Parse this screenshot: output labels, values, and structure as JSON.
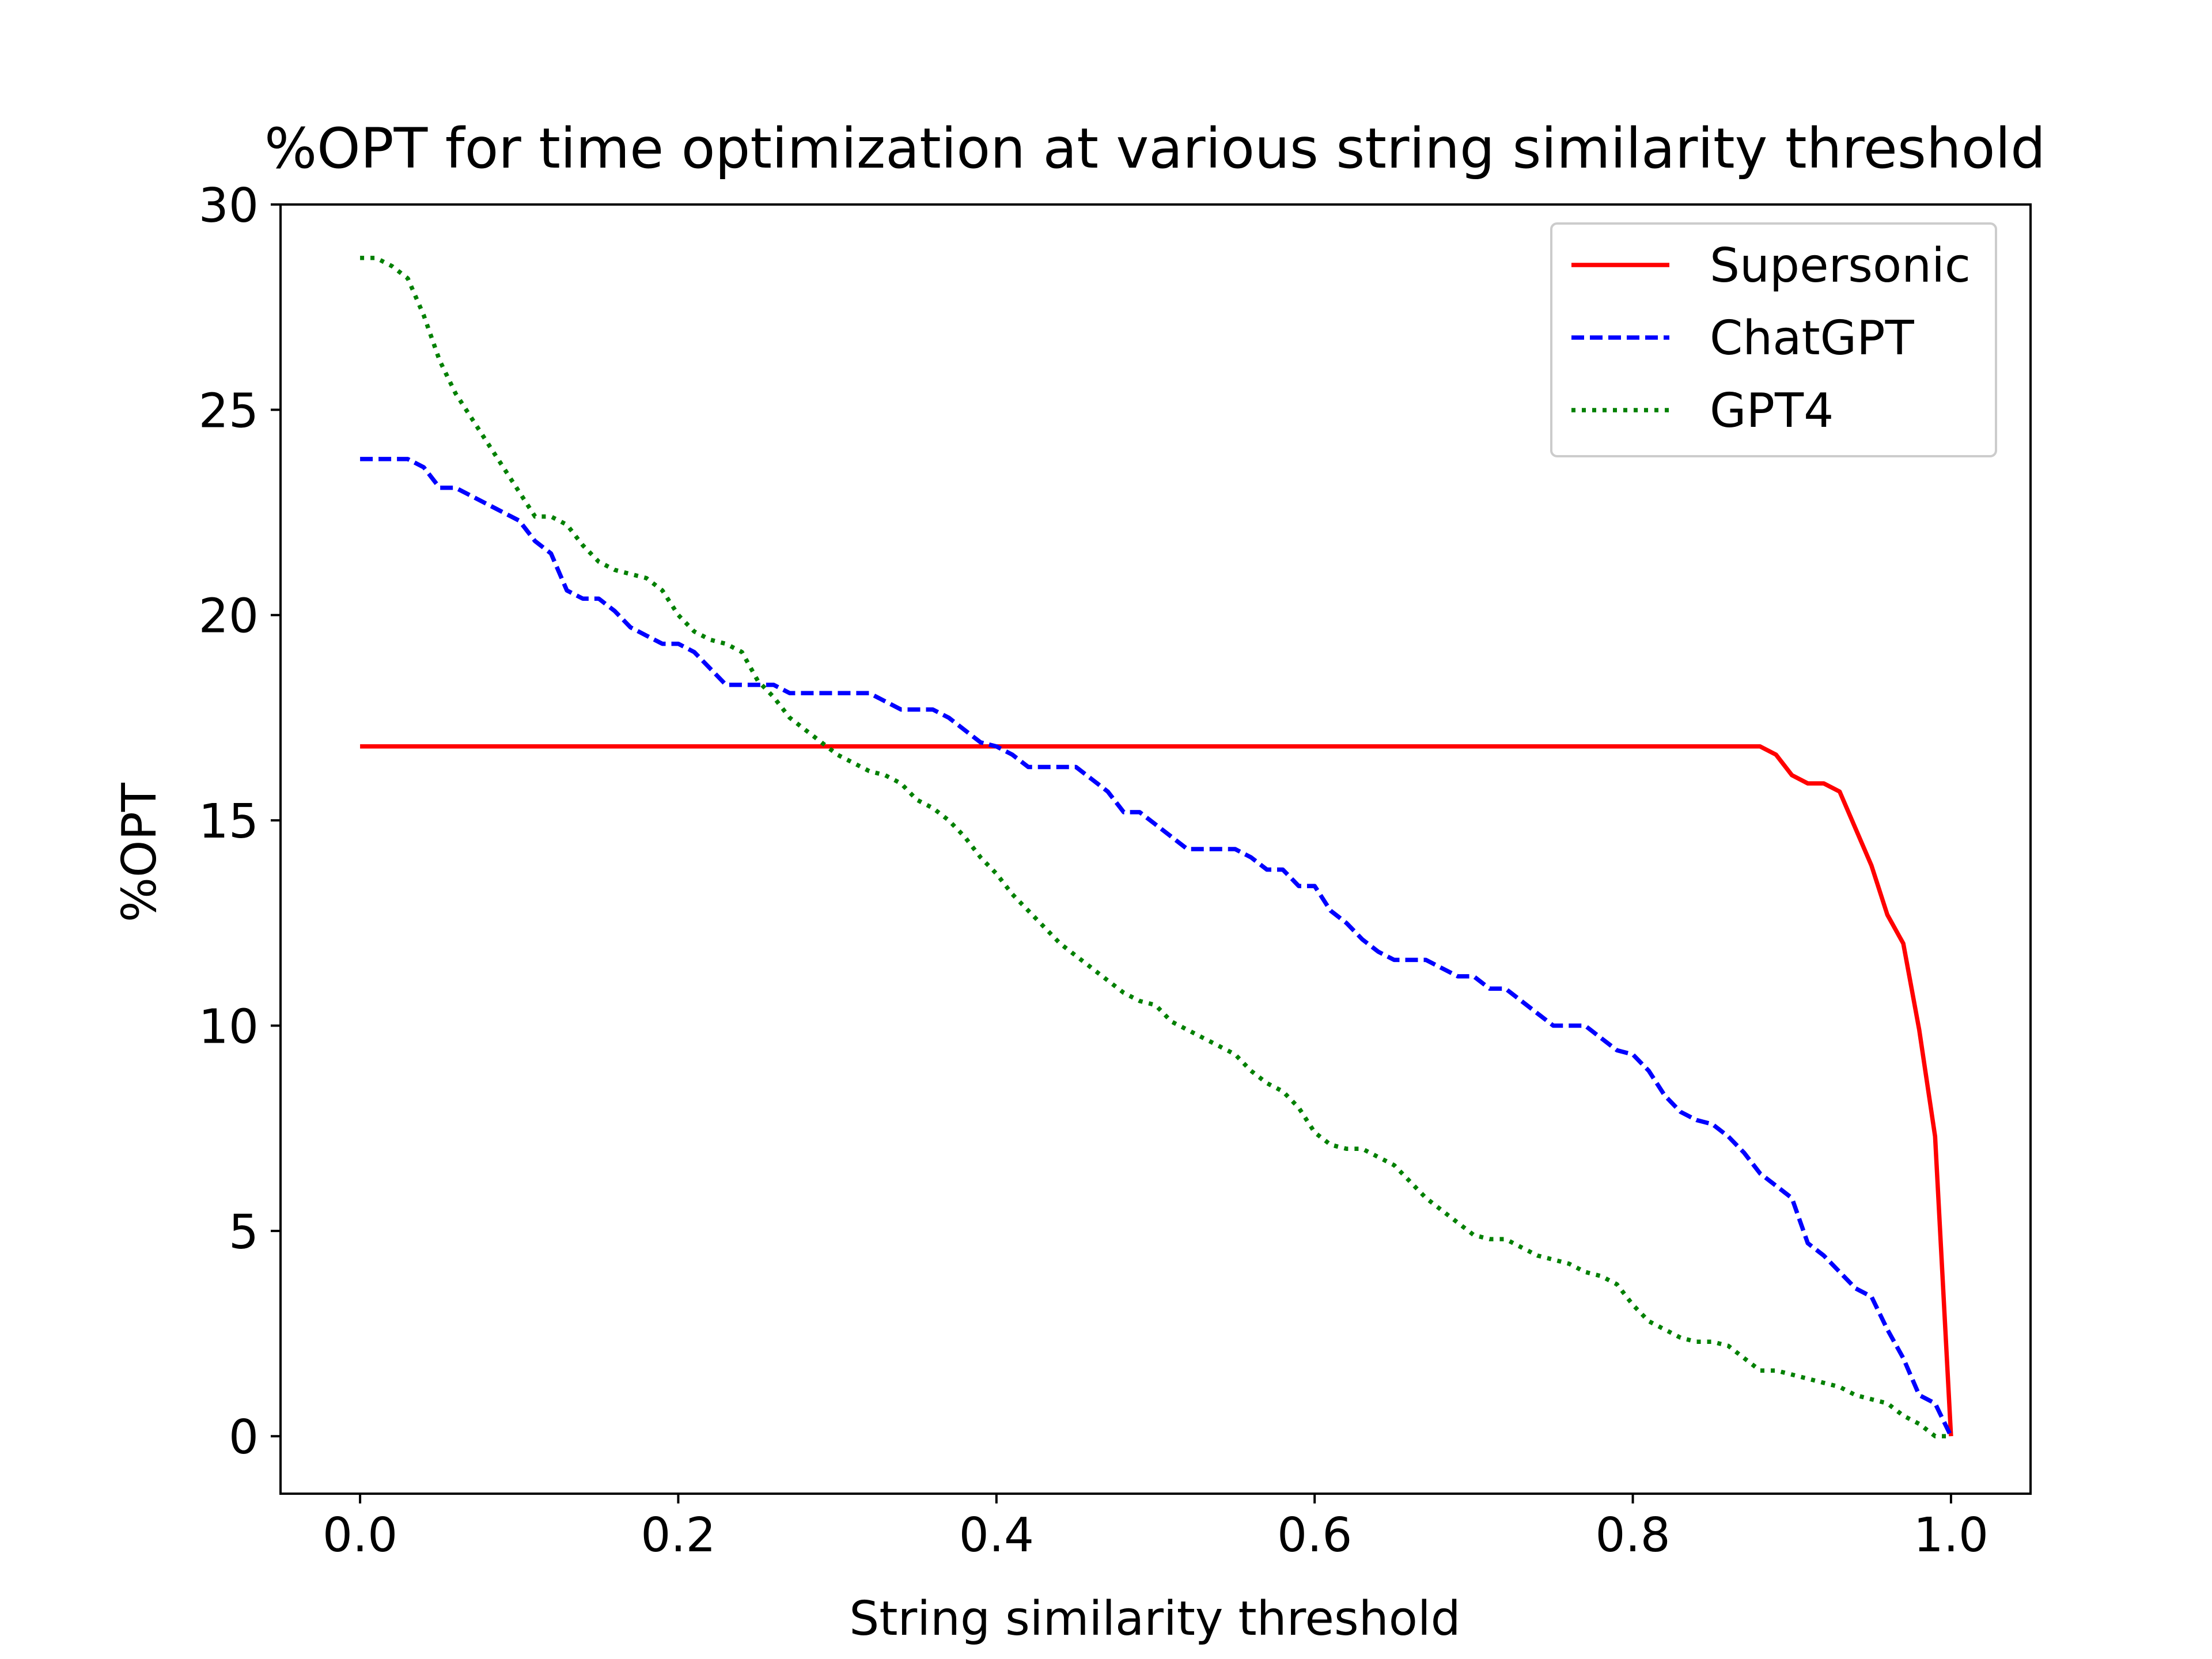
{
  "chart_data": {
    "type": "line",
    "title": "%OPT for time optimization at various string similarity threshold",
    "xlabel": "String similarity threshold",
    "ylabel": "%OPT",
    "xlim": [
      -0.05,
      1.05
    ],
    "ylim": [
      -1.4,
      30
    ],
    "xticks": [
      0.0,
      0.2,
      0.4,
      0.6,
      0.8,
      1.0
    ],
    "xtick_labels": [
      "0.0",
      "0.2",
      "0.4",
      "0.6",
      "0.8",
      "1.0"
    ],
    "yticks": [
      0,
      5,
      10,
      15,
      20,
      25,
      30
    ],
    "ytick_labels": [
      "0",
      "5",
      "10",
      "15",
      "20",
      "25",
      "30"
    ],
    "grid": false,
    "legend_position": "top-right",
    "series": [
      {
        "name": "Supersonic",
        "color": "#ff0000",
        "style": "solid",
        "x": [
          0.0,
          0.1,
          0.2,
          0.3,
          0.4,
          0.5,
          0.6,
          0.7,
          0.8,
          0.88,
          0.89,
          0.9,
          0.91,
          0.92,
          0.93,
          0.94,
          0.95,
          0.96,
          0.97,
          0.98,
          0.99,
          1.0
        ],
        "y": [
          16.8,
          16.8,
          16.8,
          16.8,
          16.8,
          16.8,
          16.8,
          16.8,
          16.8,
          16.8,
          16.6,
          16.1,
          15.9,
          15.9,
          15.7,
          14.8,
          13.9,
          12.7,
          12.0,
          9.9,
          7.3,
          0.0
        ]
      },
      {
        "name": "ChatGPT",
        "color": "#0000ff",
        "style": "dashed",
        "x": [
          0.0,
          0.01,
          0.02,
          0.03,
          0.04,
          0.05,
          0.06,
          0.07,
          0.08,
          0.09,
          0.1,
          0.11,
          0.12,
          0.13,
          0.14,
          0.15,
          0.16,
          0.17,
          0.18,
          0.19,
          0.2,
          0.21,
          0.22,
          0.23,
          0.24,
          0.25,
          0.26,
          0.27,
          0.28,
          0.29,
          0.3,
          0.31,
          0.32,
          0.33,
          0.34,
          0.35,
          0.36,
          0.37,
          0.38,
          0.39,
          0.4,
          0.41,
          0.42,
          0.43,
          0.44,
          0.45,
          0.46,
          0.47,
          0.48,
          0.49,
          0.5,
          0.51,
          0.52,
          0.53,
          0.54,
          0.55,
          0.56,
          0.57,
          0.58,
          0.59,
          0.6,
          0.61,
          0.62,
          0.63,
          0.64,
          0.65,
          0.66,
          0.67,
          0.68,
          0.69,
          0.7,
          0.71,
          0.72,
          0.73,
          0.74,
          0.75,
          0.76,
          0.77,
          0.78,
          0.79,
          0.8,
          0.81,
          0.82,
          0.83,
          0.84,
          0.85,
          0.86,
          0.87,
          0.88,
          0.89,
          0.9,
          0.91,
          0.92,
          0.93,
          0.94,
          0.95,
          0.96,
          0.97,
          0.98,
          0.99,
          1.0
        ],
        "y": [
          23.8,
          23.8,
          23.8,
          23.8,
          23.6,
          23.1,
          23.1,
          22.9,
          22.7,
          22.5,
          22.3,
          21.8,
          21.5,
          20.6,
          20.4,
          20.4,
          20.1,
          19.7,
          19.5,
          19.3,
          19.3,
          19.1,
          18.7,
          18.3,
          18.3,
          18.3,
          18.3,
          18.1,
          18.1,
          18.1,
          18.1,
          18.1,
          18.1,
          17.9,
          17.7,
          17.7,
          17.7,
          17.5,
          17.2,
          16.9,
          16.8,
          16.6,
          16.3,
          16.3,
          16.3,
          16.3,
          16.0,
          15.7,
          15.2,
          15.2,
          14.9,
          14.6,
          14.3,
          14.3,
          14.3,
          14.3,
          14.1,
          13.8,
          13.8,
          13.4,
          13.4,
          12.8,
          12.5,
          12.1,
          11.8,
          11.6,
          11.6,
          11.6,
          11.4,
          11.2,
          11.2,
          10.9,
          10.9,
          10.6,
          10.3,
          10.0,
          10.0,
          10.0,
          9.7,
          9.4,
          9.3,
          8.9,
          8.3,
          7.9,
          7.7,
          7.6,
          7.3,
          6.9,
          6.4,
          6.1,
          5.8,
          4.7,
          4.4,
          4.0,
          3.6,
          3.4,
          2.6,
          1.9,
          1.0,
          0.8,
          0.0
        ]
      },
      {
        "name": "GPT4",
        "color": "#008000",
        "style": "dotted",
        "x": [
          0.0,
          0.01,
          0.02,
          0.03,
          0.04,
          0.05,
          0.06,
          0.07,
          0.08,
          0.09,
          0.1,
          0.11,
          0.12,
          0.13,
          0.14,
          0.15,
          0.16,
          0.17,
          0.18,
          0.19,
          0.2,
          0.21,
          0.22,
          0.23,
          0.24,
          0.25,
          0.26,
          0.27,
          0.28,
          0.29,
          0.3,
          0.31,
          0.32,
          0.33,
          0.34,
          0.35,
          0.36,
          0.37,
          0.38,
          0.39,
          0.4,
          0.41,
          0.42,
          0.43,
          0.44,
          0.45,
          0.46,
          0.47,
          0.48,
          0.49,
          0.5,
          0.51,
          0.52,
          0.53,
          0.54,
          0.55,
          0.56,
          0.57,
          0.58,
          0.59,
          0.6,
          0.61,
          0.62,
          0.63,
          0.64,
          0.65,
          0.66,
          0.67,
          0.68,
          0.69,
          0.7,
          0.71,
          0.72,
          0.73,
          0.74,
          0.75,
          0.76,
          0.77,
          0.78,
          0.79,
          0.8,
          0.81,
          0.82,
          0.83,
          0.84,
          0.85,
          0.86,
          0.87,
          0.88,
          0.89,
          0.9,
          0.91,
          0.92,
          0.93,
          0.94,
          0.95,
          0.96,
          0.97,
          0.98,
          0.99,
          1.0
        ],
        "y": [
          28.7,
          28.7,
          28.5,
          28.2,
          27.3,
          26.2,
          25.4,
          24.8,
          24.2,
          23.6,
          23.0,
          22.4,
          22.4,
          22.2,
          21.7,
          21.3,
          21.1,
          21.0,
          20.9,
          20.6,
          20.0,
          19.6,
          19.4,
          19.3,
          19.1,
          18.4,
          18.0,
          17.5,
          17.2,
          16.9,
          16.6,
          16.4,
          16.2,
          16.1,
          15.9,
          15.5,
          15.3,
          15.0,
          14.6,
          14.1,
          13.7,
          13.2,
          12.8,
          12.4,
          12.0,
          11.7,
          11.4,
          11.1,
          10.8,
          10.6,
          10.5,
          10.1,
          9.9,
          9.7,
          9.5,
          9.3,
          8.9,
          8.6,
          8.4,
          8.0,
          7.4,
          7.1,
          7.0,
          7.0,
          6.8,
          6.6,
          6.2,
          5.8,
          5.5,
          5.2,
          4.9,
          4.8,
          4.8,
          4.6,
          4.4,
          4.3,
          4.2,
          4.0,
          3.9,
          3.7,
          3.2,
          2.8,
          2.6,
          2.4,
          2.3,
          2.3,
          2.2,
          1.9,
          1.6,
          1.6,
          1.5,
          1.4,
          1.3,
          1.2,
          1.0,
          0.9,
          0.8,
          0.5,
          0.3,
          0.0,
          0.0
        ]
      }
    ]
  }
}
